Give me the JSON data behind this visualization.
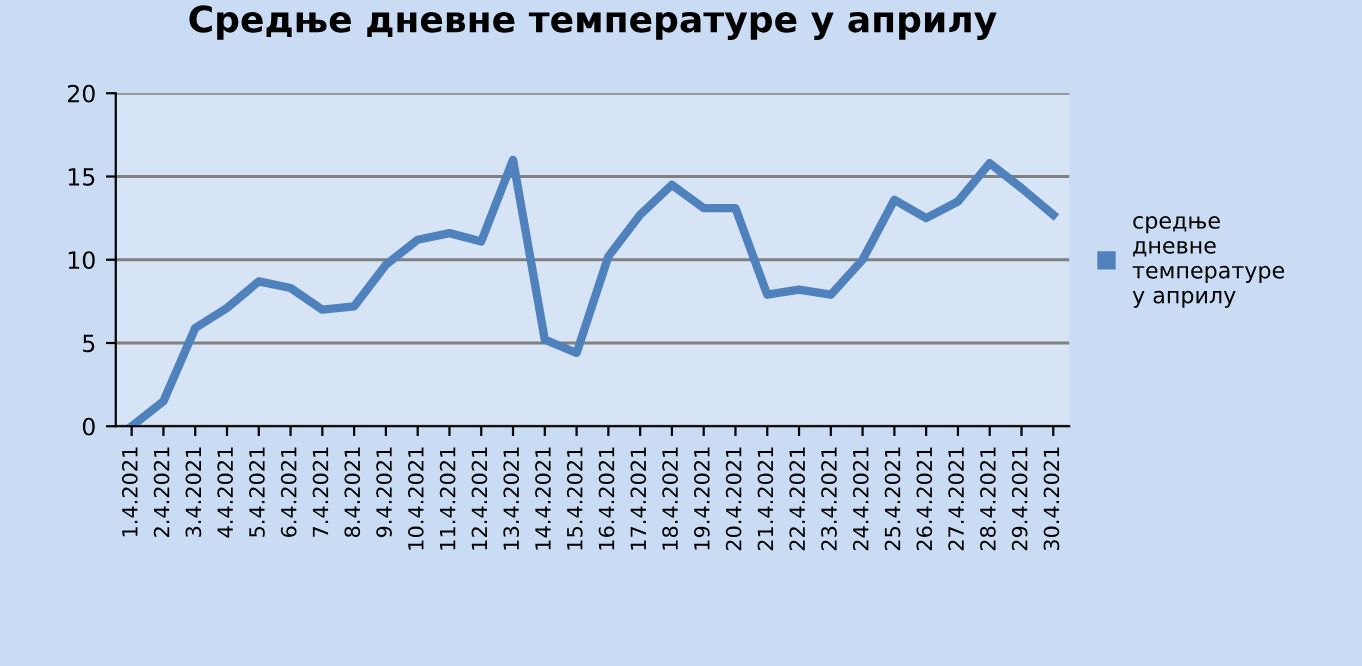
{
  "chart_data": {
    "type": "line",
    "title": "Средње дневне температуре у априлу",
    "categories": [
      "1.4.2021",
      "2.4.2021",
      "3.4.2021",
      "4.4.2021",
      "5.4.2021",
      "6.4.2021",
      "7.4.2021",
      "8.4.2021",
      "9.4.2021",
      "10.4.2021",
      "11.4.2021",
      "12.4.2021",
      "13.4.2021",
      "14.4.2021",
      "15.4.2021",
      "16.4.2021",
      "17.4.2021",
      "18.4.2021",
      "19.4.2021",
      "20.4.2021",
      "21.4.2021",
      "22.4.2021",
      "23.4.2021",
      "24.4.2021",
      "25.4.2021",
      "26.4.2021",
      "27.4.2021",
      "28.4.2021",
      "29.4.2021",
      "30.4.2021"
    ],
    "series": [
      {
        "name": "средње дневне температуре у априлу",
        "color": "#4f81bd",
        "values": [
          0,
          1.5,
          5.9,
          7.1,
          8.7,
          8.3,
          7,
          7.2,
          9.7,
          11.2,
          11.6,
          11.1,
          16,
          5.2,
          4.4,
          10.2,
          12.7,
          14.5,
          13.1,
          13.1,
          7.9,
          8.2,
          7.9,
          10,
          13.6,
          12.5,
          13.5,
          15.8,
          14.3,
          12.7
        ]
      }
    ],
    "ylim": [
      0,
      20
    ],
    "yticks": [
      0,
      5,
      10,
      15,
      20
    ],
    "grid": "y",
    "legend": "right",
    "marker": "none",
    "line_style": "solid"
  }
}
